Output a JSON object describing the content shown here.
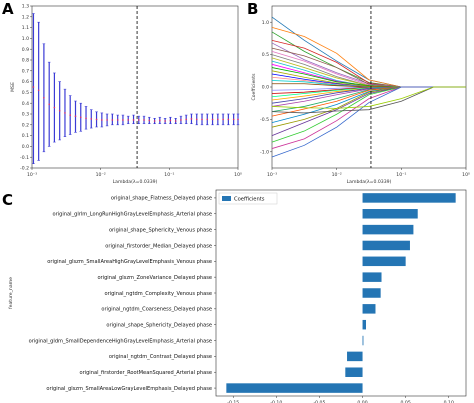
{
  "chart_data": [
    {
      "panel": "A",
      "type": "scatter",
      "xlabel": "Lambda(λ=0.0339)",
      "ylabel": "MSE",
      "xscale": "log",
      "xlim": [
        0.001,
        1
      ],
      "ylim": [
        -0.2,
        1.3
      ],
      "xticks": [
        "10⁻³",
        "10⁻²",
        "10⁻¹",
        "10⁰"
      ],
      "yticks": [
        "-0.2",
        "-0.1",
        "0.0",
        "0.1",
        "0.2",
        "0.3",
        "0.4",
        "0.5",
        "0.6",
        "0.7",
        "0.8",
        "0.9",
        "1.0",
        "1.1",
        "1.2",
        "1.3"
      ],
      "vline": 0.0339,
      "error_color": "#3b3bd6",
      "point_color": "#e0306a",
      "x": [
        0.00105,
        0.00125,
        0.00149,
        0.00178,
        0.00212,
        0.00253,
        0.00302,
        0.0036,
        0.0043,
        0.00513,
        0.00612,
        0.0073,
        0.00871,
        0.0104,
        0.0124,
        0.0148,
        0.0177,
        0.0211,
        0.0252,
        0.0301,
        0.0359,
        0.0428,
        0.0511,
        0.061,
        0.0727,
        0.0868,
        0.1036,
        0.1236,
        0.1475,
        0.176,
        0.21,
        0.2507,
        0.2991,
        0.357,
        0.426,
        0.5084,
        0.6067,
        0.724,
        0.864,
        1.0
      ],
      "upper": [
        1.23,
        1.15,
        0.95,
        0.78,
        0.68,
        0.6,
        0.53,
        0.47,
        0.42,
        0.4,
        0.37,
        0.34,
        0.32,
        0.31,
        0.3,
        0.3,
        0.29,
        0.29,
        0.28,
        0.29,
        0.28,
        0.28,
        0.27,
        0.26,
        0.27,
        0.26,
        0.27,
        0.26,
        0.28,
        0.29,
        0.3,
        0.3,
        0.3,
        0.3,
        0.3,
        0.3,
        0.3,
        0.3,
        0.3,
        0.3
      ],
      "lower": [
        -0.16,
        -0.13,
        -0.05,
        0.0,
        0.04,
        0.06,
        0.09,
        0.11,
        0.13,
        0.14,
        0.16,
        0.17,
        0.18,
        0.18,
        0.19,
        0.2,
        0.2,
        0.2,
        0.21,
        0.21,
        0.21,
        0.21,
        0.21,
        0.21,
        0.21,
        0.21,
        0.21,
        0.21,
        0.21,
        0.21,
        0.21,
        0.2,
        0.2,
        0.2,
        0.2,
        0.2,
        0.2,
        0.2,
        0.2,
        0.2
      ],
      "mean": [
        0.55,
        0.52,
        0.45,
        0.39,
        0.36,
        0.33,
        0.31,
        0.29,
        0.28,
        0.27,
        0.26,
        0.255,
        0.25,
        0.245,
        0.245,
        0.245,
        0.245,
        0.245,
        0.245,
        0.245,
        0.245,
        0.245,
        0.24,
        0.235,
        0.24,
        0.235,
        0.24,
        0.235,
        0.245,
        0.25,
        0.255,
        0.25,
        0.25,
        0.25,
        0.25,
        0.25,
        0.25,
        0.25,
        0.25,
        0.25
      ]
    },
    {
      "panel": "B",
      "type": "line",
      "xlabel": "Lambda(λ=0.0339)",
      "ylabel": "Coefficients",
      "xscale": "log",
      "xlim": [
        0.001,
        1
      ],
      "ylim": [
        -1.25,
        1.25
      ],
      "xticks": [
        "10⁻³",
        "10⁻²",
        "10⁻¹",
        "10⁰"
      ],
      "yticks": [
        "-1.0",
        "-0.5",
        "0.0",
        "0.5",
        "1.0"
      ],
      "vline": 0.0339,
      "x": [
        0.001,
        0.00316,
        0.01,
        0.0316,
        0.1,
        0.316,
        1.0
      ],
      "series": [
        {
          "values": [
            1.08,
            0.72,
            0.4,
            0.11,
            0.0,
            0.0,
            0.0
          ]
        },
        {
          "values": [
            0.92,
            0.78,
            0.52,
            0.11,
            0.0,
            0.0,
            0.0
          ]
        },
        {
          "values": [
            0.85,
            0.55,
            0.3,
            0.07,
            0.0,
            0.0,
            0.0
          ]
        },
        {
          "values": [
            0.72,
            0.6,
            0.38,
            0.06,
            0.0,
            0.0,
            0.0
          ]
        },
        {
          "values": [
            0.68,
            0.42,
            0.22,
            0.05,
            0.0,
            0.0,
            0.0
          ]
        },
        {
          "values": [
            0.6,
            0.48,
            0.3,
            0.04,
            0.0,
            0.0,
            0.0
          ]
        },
        {
          "values": [
            0.55,
            0.4,
            0.2,
            0.03,
            0.0,
            0.0,
            0.0
          ]
        },
        {
          "values": [
            0.5,
            0.35,
            0.16,
            0.02,
            0.0,
            0.0,
            0.0
          ]
        },
        {
          "values": [
            0.45,
            0.3,
            0.14,
            0.02,
            0.0,
            0.0,
            0.0
          ]
        },
        {
          "values": [
            0.4,
            0.26,
            0.1,
            0.01,
            0.0,
            0.0,
            0.0
          ]
        },
        {
          "values": [
            0.35,
            0.22,
            0.09,
            0.01,
            0.0,
            0.0,
            0.0
          ]
        },
        {
          "values": [
            0.3,
            0.2,
            0.08,
            0.02,
            0.0,
            0.0,
            0.0
          ]
        },
        {
          "values": [
            0.25,
            0.15,
            0.06,
            0.01,
            0.0,
            0.0,
            0.0
          ]
        },
        {
          "values": [
            0.2,
            0.12,
            0.05,
            0.0,
            0.0,
            0.0,
            0.0
          ]
        },
        {
          "values": [
            0.15,
            0.1,
            0.04,
            0.0,
            0.0,
            0.0,
            0.0
          ]
        },
        {
          "values": [
            0.1,
            0.08,
            0.03,
            0.0,
            0.0,
            0.0,
            0.0
          ]
        },
        {
          "values": [
            0.05,
            0.05,
            0.02,
            0.0,
            0.0,
            0.0,
            0.0
          ]
        },
        {
          "values": [
            -0.05,
            -0.04,
            -0.02,
            0.0,
            0.0,
            0.0,
            0.0
          ]
        },
        {
          "values": [
            -0.1,
            -0.08,
            -0.04,
            0.0,
            0.0,
            0.0,
            0.0
          ]
        },
        {
          "values": [
            -0.15,
            -0.1,
            -0.05,
            -0.01,
            0.0,
            0.0,
            0.0
          ]
        },
        {
          "values": [
            -0.2,
            -0.14,
            -0.07,
            -0.02,
            0.0,
            0.0,
            0.0
          ]
        },
        {
          "values": [
            -0.25,
            -0.18,
            -0.09,
            -0.02,
            0.0,
            0.0,
            0.0
          ]
        },
        {
          "values": [
            -0.3,
            -0.22,
            -0.12,
            -0.03,
            0.0,
            0.0,
            0.0
          ]
        },
        {
          "values": [
            -0.38,
            -0.3,
            -0.18,
            -0.04,
            0.0,
            0.0,
            0.0
          ]
        },
        {
          "values": [
            -0.45,
            -0.34,
            -0.22,
            -0.05,
            0.0,
            0.0,
            0.0
          ]
        },
        {
          "values": [
            -0.55,
            -0.42,
            -0.27,
            -0.07,
            0.0,
            0.0,
            0.0
          ]
        },
        {
          "values": [
            -0.62,
            -0.5,
            -0.33,
            -0.08,
            0.0,
            0.0,
            0.0
          ]
        },
        {
          "values": [
            -0.75,
            -0.55,
            -0.35,
            -0.1,
            0.0,
            0.0,
            0.0
          ]
        },
        {
          "values": [
            -0.85,
            -0.68,
            -0.42,
            -0.12,
            0.0,
            0.0,
            0.0
          ]
        },
        {
          "values": [
            -0.95,
            -0.8,
            -0.52,
            -0.18,
            0.0,
            0.0,
            0.0
          ]
        },
        {
          "values": [
            -1.08,
            -0.9,
            -0.62,
            -0.24,
            0.0,
            0.0,
            0.0
          ]
        },
        {
          "values": [
            -0.38,
            -0.4,
            -0.37,
            -0.35,
            -0.22,
            0.0,
            0.0
          ]
        },
        {
          "values": [
            -0.3,
            -0.32,
            -0.33,
            -0.3,
            -0.18,
            0.0,
            0.0
          ]
        }
      ],
      "colors": [
        "#1f77b4",
        "#ff7f0e",
        "#2ca02c",
        "#d62728",
        "#9467bd",
        "#8c564b",
        "#e377c2",
        "#7f7f7f",
        "#bcbd22",
        "#17becf",
        "#ff00ff",
        "#00aa00",
        "#aaaa00",
        "#0000ff",
        "#ff8888",
        "#00cccc",
        "#884400",
        "#8888ff",
        "#cc0000",
        "#00ff88",
        "#ffaa00",
        "#4444aa",
        "#aa44aa",
        "#22aa66",
        "#ff5500",
        "#0088cc",
        "#999900",
        "#663399",
        "#33cc33",
        "#cc3399",
        "#3366cc",
        "#555555",
        "#99cc00"
      ]
    },
    {
      "panel": "C",
      "type": "bar",
      "orientation": "horizontal",
      "ylabel": "feature_name",
      "legend": "Coefficients",
      "legend_position": "top-left",
      "bar_color": "#2475b4",
      "xlim": [
        -0.17,
        0.12
      ],
      "xticks": [
        -0.15,
        -0.1,
        -0.05,
        0.0,
        0.05,
        0.1
      ],
      "xtick_labels": [
        "-0.15",
        "-0.10",
        "-0.05",
        "0.00",
        "0.05",
        "0.10"
      ],
      "categories": [
        "original_shape_Flatness_Delayed phase",
        "original_glrlm_LongRunHighGrayLevelEmphasis_Arterial phase",
        "original_shape_Sphericity_Venous phase",
        "original_firstorder_Median_Delayed phase",
        "original_glszm_SmallAreaHighGrayLevelEmphasis_Venous phase",
        "original_glszm_ZoneVariance_Delayed phase",
        "original_ngtdm_Complexity_Venous phase",
        "original_ngtdm_Coarseness_Delayed phase",
        "original_shape_Sphericity_Delayed phase",
        "original_gldm_SmallDependenceHighGrayLevelEmphasis_Arterial phase",
        "original_ngtdm_Contrast_Delayed phase",
        "original_firstorder_RootMeanSquared_Arterial phase",
        "original_glszm_SmallAreaLowGrayLevelEmphasis_Delayed phase"
      ],
      "values": [
        0.108,
        0.064,
        0.059,
        0.055,
        0.05,
        0.022,
        0.021,
        0.015,
        0.004,
        0.001,
        -0.018,
        -0.02,
        -0.158
      ]
    }
  ]
}
